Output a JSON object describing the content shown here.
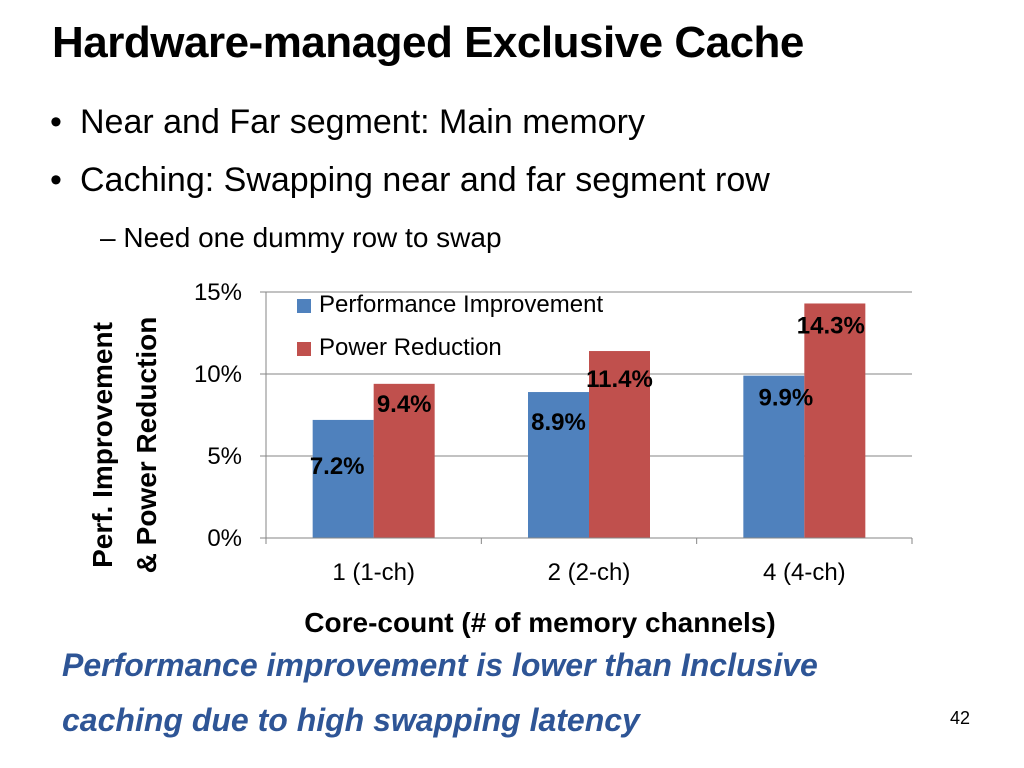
{
  "slide": {
    "title": "Hardware-managed Exclusive Cache",
    "bullets": [
      "Near and Far segment: Main memory",
      "Caching: Swapping near and far segment row"
    ],
    "sub_bullet": "– Need one dummy row to swap",
    "caption_line1": "Performance improvement is lower than Inclusive",
    "caption_line2": "caching due to high swapping latency",
    "page_number": "42",
    "bullet_glyph": "•",
    "colors": {
      "caption": "#2e5596"
    }
  },
  "chart_data": {
    "type": "bar",
    "categories": [
      "1 (1-ch)",
      "2 (2-ch)",
      "4 (4-ch)"
    ],
    "series": [
      {
        "name": "Performance Improvement",
        "values": [
          7.2,
          8.9,
          9.9
        ],
        "labels": [
          "7.2%",
          "8.9%",
          "9.9%"
        ],
        "color": "#4f81bd"
      },
      {
        "name": "Power Reduction",
        "values": [
          9.4,
          11.4,
          14.3
        ],
        "labels": [
          "9.4%",
          "11.4%",
          "14.3%"
        ],
        "color": "#c0504d"
      }
    ],
    "ylabel_line1": "Perf. Improvement",
    "ylabel_line2": "& Power Reduction",
    "xlabel": "Core-count (# of memory channels)",
    "ylim": [
      0,
      15
    ],
    "yticks": [
      0,
      5,
      10,
      15
    ],
    "ytick_labels": [
      "0%",
      "5%",
      "10%",
      "15%"
    ],
    "grid": true,
    "legend": "top-left"
  }
}
